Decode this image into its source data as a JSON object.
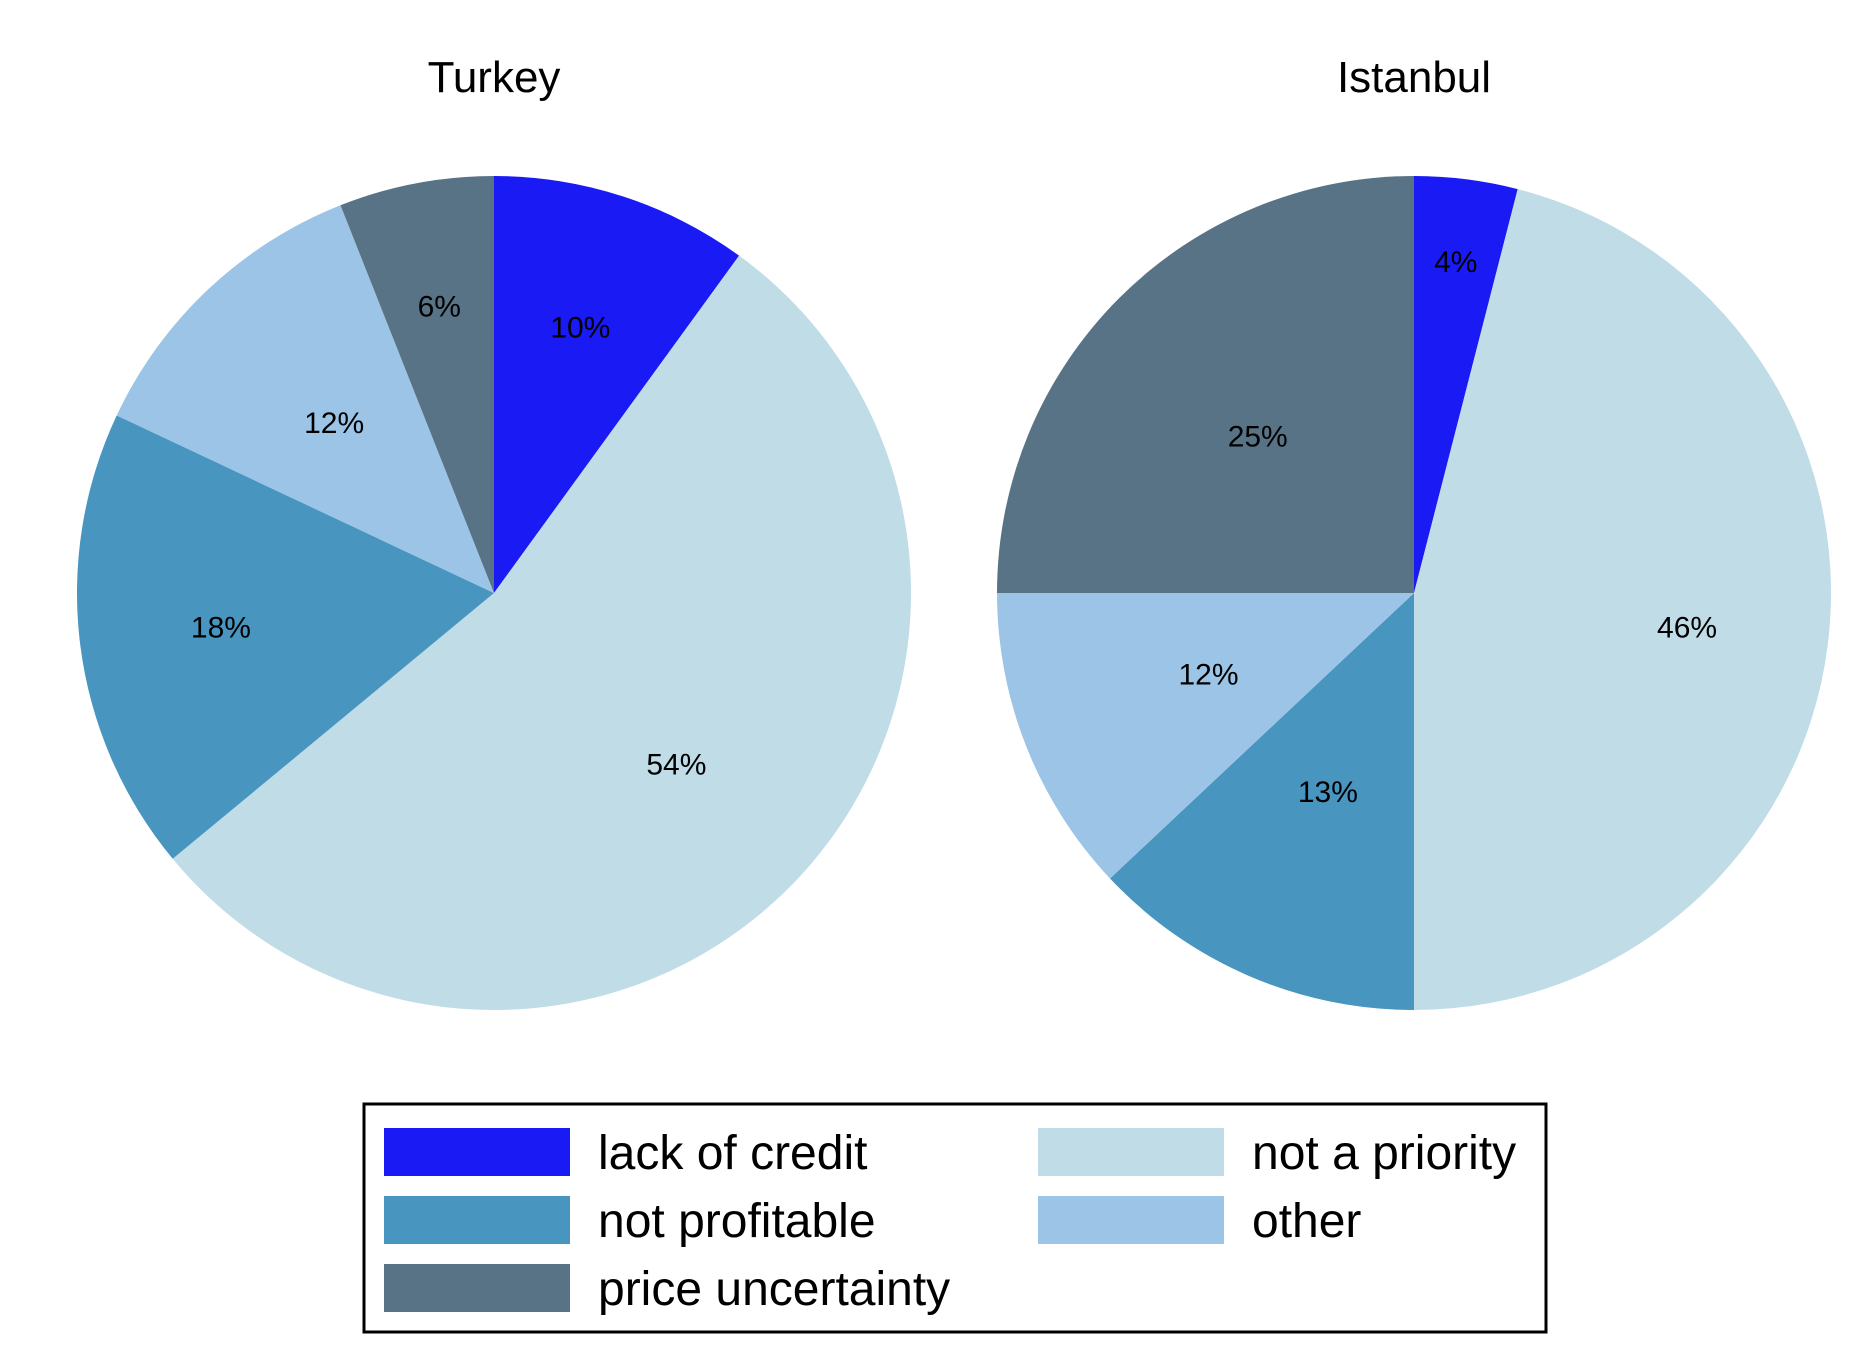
{
  "chart_data": [
    {
      "type": "pie",
      "title": "Turkey",
      "start": "12 o'clock",
      "direction": "clockwise",
      "slices": [
        {
          "label": "lack of credit",
          "value": 10,
          "text": "10%",
          "color": "#1a1af5"
        },
        {
          "label": "not a priority",
          "value": 54,
          "text": "54%",
          "color": "#bfdce7"
        },
        {
          "label": "not profitable",
          "value": 18,
          "text": "18%",
          "color": "#4895c0"
        },
        {
          "label": "other",
          "value": 12,
          "text": "12%",
          "color": "#9bc4e6"
        },
        {
          "label": "price uncertainty",
          "value": 6,
          "text": "6%",
          "color": "#587386"
        }
      ]
    },
    {
      "type": "pie",
      "title": "Istanbul",
      "start": "12 o'clock",
      "direction": "clockwise",
      "slices": [
        {
          "label": "lack of credit",
          "value": 4,
          "text": "4%",
          "color": "#1a1af5"
        },
        {
          "label": "not a priority",
          "value": 46,
          "text": "46%",
          "color": "#bfdce7"
        },
        {
          "label": "not profitable",
          "value": 13,
          "text": "13%",
          "color": "#4895c0"
        },
        {
          "label": "other",
          "value": 12,
          "text": "12%",
          "color": "#9bc4e6"
        },
        {
          "label": "price uncertainty",
          "value": 25,
          "text": "25%",
          "color": "#587386"
        }
      ]
    }
  ],
  "legend": {
    "placement": "bottom",
    "items": [
      {
        "label": "lack of credit",
        "color": "#1a1af5"
      },
      {
        "label": "not a priority",
        "color": "#bfdce7"
      },
      {
        "label": "not profitable",
        "color": "#4895c0"
      },
      {
        "label": "other",
        "color": "#9bc4e6"
      },
      {
        "label": "price uncertainty",
        "color": "#587386"
      }
    ]
  }
}
